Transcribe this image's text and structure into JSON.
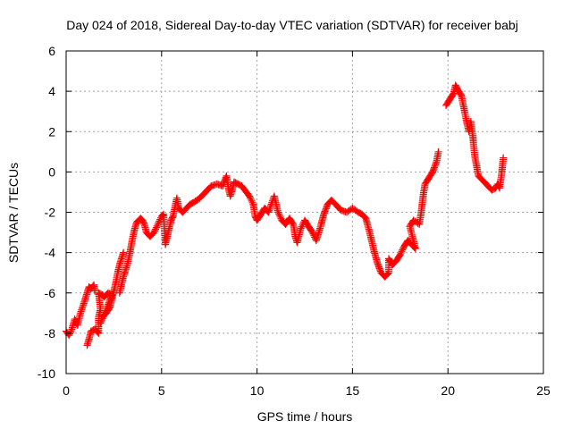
{
  "chart_data": {
    "type": "scatter",
    "title": "Day 024 of 2018, Sidereal Day-to-day VTEC variation (SDTVAR) for receiver babj",
    "xlabel": "GPS time / hours",
    "ylabel": "SDTVAR / TECUs",
    "xlim": [
      0,
      25
    ],
    "ylim": [
      -10,
      6
    ],
    "xticks": [
      0,
      5,
      10,
      15,
      20,
      25
    ],
    "yticks": [
      -10,
      -8,
      -6,
      -4,
      -2,
      0,
      2,
      4,
      6
    ],
    "xtick_labels": [
      "0",
      "5",
      "10",
      "15",
      "20",
      "25"
    ],
    "ytick_labels": [
      "-10",
      "-8",
      "-6",
      "-4",
      "-2",
      "0",
      "2",
      "4",
      "6"
    ],
    "grid": true,
    "marker": "+",
    "series": [
      {
        "name": "babj",
        "color": "#ff0000",
        "points": [
          [
            0.0,
            -7.9
          ],
          [
            0.15,
            -8.1
          ],
          [
            0.3,
            -7.8
          ],
          [
            0.45,
            -7.3
          ],
          [
            0.6,
            -7.6
          ],
          [
            0.75,
            -7.0
          ],
          [
            0.9,
            -6.6
          ],
          [
            1.0,
            -6.3
          ],
          [
            1.1,
            -6.0
          ],
          [
            1.2,
            -5.7
          ],
          [
            1.3,
            -5.8
          ],
          [
            1.45,
            -5.6
          ],
          [
            1.5,
            -5.9
          ],
          [
            1.1,
            -8.6
          ],
          [
            1.2,
            -8.3
          ],
          [
            1.3,
            -7.9
          ],
          [
            1.5,
            -7.8
          ],
          [
            1.7,
            -8.0
          ],
          [
            1.7,
            -7.2
          ],
          [
            1.8,
            -6.8
          ],
          [
            1.7,
            -6.0
          ],
          [
            1.9,
            -6.1
          ],
          [
            2.0,
            -6.2
          ],
          [
            2.2,
            -6.0
          ],
          [
            2.4,
            -6.1
          ],
          [
            1.8,
            -7.5
          ],
          [
            1.9,
            -7.2
          ],
          [
            2.1,
            -7.0
          ],
          [
            2.3,
            -6.7
          ],
          [
            2.5,
            -5.9
          ],
          [
            2.6,
            -5.5
          ],
          [
            2.7,
            -5.0
          ],
          [
            2.8,
            -4.6
          ],
          [
            2.9,
            -4.3
          ],
          [
            3.0,
            -4.0
          ],
          [
            2.8,
            -6.0
          ],
          [
            2.9,
            -5.6
          ],
          [
            3.0,
            -5.2
          ],
          [
            3.1,
            -4.9
          ],
          [
            3.2,
            -4.6
          ],
          [
            3.3,
            -4.2
          ],
          [
            3.4,
            -3.7
          ],
          [
            3.5,
            -3.2
          ],
          [
            3.6,
            -2.8
          ],
          [
            3.7,
            -2.5
          ],
          [
            3.9,
            -2.3
          ],
          [
            4.0,
            -2.4
          ],
          [
            4.1,
            -2.6
          ],
          [
            4.2,
            -3.0
          ],
          [
            4.4,
            -3.2
          ],
          [
            4.6,
            -3.0
          ],
          [
            4.8,
            -2.6
          ],
          [
            5.0,
            -2.2
          ],
          [
            5.1,
            -2.1
          ],
          [
            5.2,
            -3.6
          ],
          [
            5.3,
            -3.2
          ],
          [
            5.4,
            -2.8
          ],
          [
            5.5,
            -2.4
          ],
          [
            5.6,
            -2.2
          ],
          [
            5.8,
            -1.3
          ],
          [
            5.9,
            -1.8
          ],
          [
            6.1,
            -2.0
          ],
          [
            6.3,
            -1.8
          ],
          [
            6.5,
            -1.6
          ],
          [
            6.7,
            -1.5
          ],
          [
            7.0,
            -1.3
          ],
          [
            7.3,
            -1.0
          ],
          [
            7.6,
            -0.7
          ],
          [
            7.9,
            -0.6
          ],
          [
            8.2,
            -0.7
          ],
          [
            8.4,
            -0.2
          ],
          [
            8.5,
            -0.8
          ],
          [
            8.6,
            -1.2
          ],
          [
            8.7,
            -0.9
          ],
          [
            8.8,
            -0.5
          ],
          [
            9.0,
            -0.6
          ],
          [
            9.2,
            -0.7
          ],
          [
            9.6,
            -1.2
          ],
          [
            9.8,
            -1.6
          ],
          [
            9.9,
            -2.2
          ],
          [
            10.0,
            -2.4
          ],
          [
            10.2,
            -2.1
          ],
          [
            10.4,
            -1.8
          ],
          [
            10.6,
            -2.0
          ],
          [
            10.9,
            -1.2
          ],
          [
            11.0,
            -1.6
          ],
          [
            11.1,
            -2.0
          ],
          [
            11.3,
            -2.4
          ],
          [
            11.5,
            -2.6
          ],
          [
            11.7,
            -2.3
          ],
          [
            11.9,
            -2.6
          ],
          [
            12.0,
            -3.2
          ],
          [
            12.1,
            -3.5
          ],
          [
            12.3,
            -2.8
          ],
          [
            12.5,
            -2.4
          ],
          [
            12.7,
            -2.7
          ],
          [
            12.9,
            -3.0
          ],
          [
            13.1,
            -3.4
          ],
          [
            13.3,
            -2.8
          ],
          [
            13.5,
            -2.1
          ],
          [
            13.7,
            -1.6
          ],
          [
            13.9,
            -1.4
          ],
          [
            14.1,
            -1.6
          ],
          [
            14.4,
            -1.9
          ],
          [
            14.7,
            -2.0
          ],
          [
            15.0,
            -1.8
          ],
          [
            15.3,
            -2.0
          ],
          [
            15.5,
            -2.1
          ],
          [
            15.7,
            -2.3
          ],
          [
            15.9,
            -3.0
          ],
          [
            16.1,
            -3.8
          ],
          [
            16.3,
            -4.5
          ],
          [
            16.5,
            -5.0
          ],
          [
            16.7,
            -5.2
          ],
          [
            16.9,
            -5.0
          ],
          [
            16.9,
            -4.3
          ],
          [
            17.1,
            -4.6
          ],
          [
            17.3,
            -4.4
          ],
          [
            17.5,
            -4.1
          ],
          [
            17.7,
            -3.7
          ],
          [
            17.9,
            -3.4
          ],
          [
            18.1,
            -3.6
          ],
          [
            18.3,
            -3.8
          ],
          [
            18.0,
            -2.7
          ],
          [
            18.2,
            -2.4
          ],
          [
            18.5,
            -2.6
          ],
          [
            18.6,
            -2.0
          ],
          [
            18.7,
            -1.2
          ],
          [
            18.8,
            -0.6
          ],
          [
            19.0,
            -0.3
          ],
          [
            19.2,
            0.0
          ],
          [
            19.4,
            0.5
          ],
          [
            19.5,
            1.0
          ],
          [
            19.9,
            3.3
          ],
          [
            20.1,
            3.6
          ],
          [
            20.3,
            3.9
          ],
          [
            20.4,
            4.3
          ],
          [
            20.5,
            4.1
          ],
          [
            20.7,
            3.8
          ],
          [
            21.0,
            2.4
          ],
          [
            21.1,
            2.0
          ],
          [
            21.2,
            2.5
          ],
          [
            21.3,
            1.8
          ],
          [
            21.4,
            0.8
          ],
          [
            21.5,
            0.3
          ],
          [
            21.6,
            -0.2
          ],
          [
            21.8,
            -0.4
          ],
          [
            21.9,
            -0.5
          ],
          [
            22.1,
            -0.7
          ],
          [
            22.3,
            -0.9
          ],
          [
            22.5,
            -0.8
          ],
          [
            22.6,
            -0.6
          ],
          [
            22.7,
            -0.8
          ],
          [
            22.8,
            -0.2
          ],
          [
            22.9,
            0.7
          ]
        ]
      }
    ]
  }
}
